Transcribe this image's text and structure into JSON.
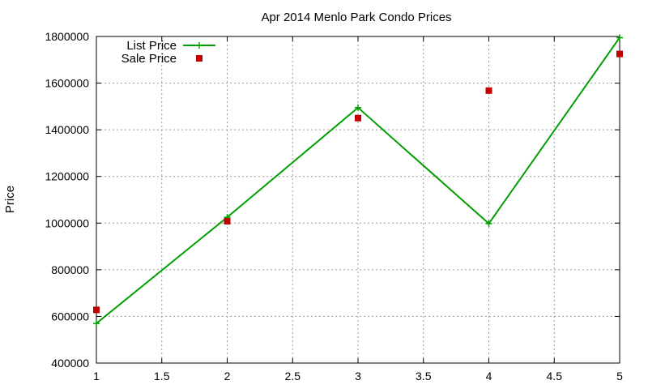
{
  "chart_data": {
    "type": "line",
    "title": "Apr 2014 Menlo Park Condo Prices",
    "xlabel": "",
    "ylabel": "Price",
    "xlim": [
      1,
      5
    ],
    "ylim": [
      400000,
      1800000
    ],
    "xticks": [
      1,
      1.5,
      2,
      2.5,
      3,
      3.5,
      4,
      4.5,
      5
    ],
    "yticks": [
      400000,
      600000,
      800000,
      1000000,
      1200000,
      1400000,
      1600000,
      1800000
    ],
    "grid": true,
    "legend_position": "top-left",
    "series": [
      {
        "name": "List Price",
        "style": "line-with-plus-markers",
        "color": "#00a000",
        "x": [
          1,
          2,
          3,
          4,
          5
        ],
        "y": [
          570000,
          1025000,
          1495000,
          998000,
          1795000
        ]
      },
      {
        "name": "Sale Price",
        "style": "square-markers",
        "color": "#c00000",
        "x": [
          1,
          2,
          3,
          4,
          5
        ],
        "y": [
          628000,
          1008000,
          1450000,
          1568000,
          1725000
        ]
      }
    ]
  }
}
